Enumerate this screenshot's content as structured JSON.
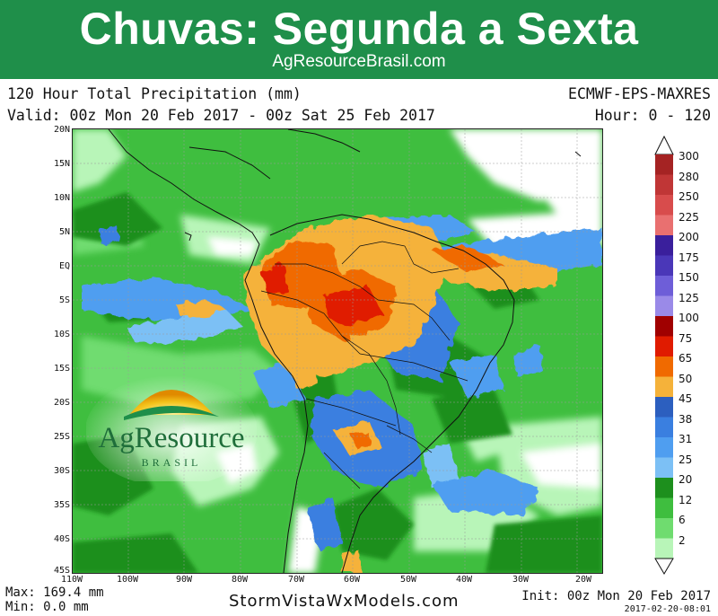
{
  "banner": {
    "title": "Chuvas: Segunda a Sexta",
    "subtitle": "AgResourceBrasil.com"
  },
  "header": {
    "title": "120 Hour Total Precipitation (mm)",
    "model": "ECMWF-EPS-MAXRES",
    "valid": "Valid: 00z Mon 20 Feb 2017 - 00z Sat 25 Feb 2017",
    "hour": "Hour: 0 - 120"
  },
  "lat_labels": [
    "20N",
    "15N",
    "10N",
    "5N",
    "EQ",
    "5S",
    "10S",
    "15S",
    "20S",
    "25S",
    "30S",
    "35S",
    "40S",
    "45S"
  ],
  "lon_labels": [
    "110W",
    "100W",
    "90W",
    "80W",
    "70W",
    "60W",
    "50W",
    "40W",
    "30W",
    "20W"
  ],
  "legend": {
    "labels": [
      "300",
      "280",
      "250",
      "225",
      "200",
      "175",
      "150",
      "125",
      "100",
      "75",
      "65",
      "50",
      "45",
      "38",
      "31",
      "25",
      "20",
      "12",
      "6",
      "2"
    ],
    "colors": [
      "#a52323",
      "#c03636",
      "#d84c4c",
      "#e97070",
      "#3a1f9c",
      "#4a37b8",
      "#6e5ed8",
      "#9a8ae8",
      "#a00000",
      "#e01b00",
      "#f06a00",
      "#f5b23a",
      "#2c5fbf",
      "#3a7fe0",
      "#4f9ef0",
      "#7cc0f5",
      "#1d8f1d",
      "#3fbe3f",
      "#6fdc6f",
      "#b8f5b8"
    ]
  },
  "footer": {
    "max": "Max: 169.4 mm",
    "min": "Min: 0.0 mm",
    "site": "StormVistaWxModels.com",
    "init": "Init: 00z Mon 20 Feb 2017",
    "stamp": "2017-02-20-08:01"
  },
  "logo": {
    "name": "AgResource",
    "sub": "BRASIL"
  }
}
